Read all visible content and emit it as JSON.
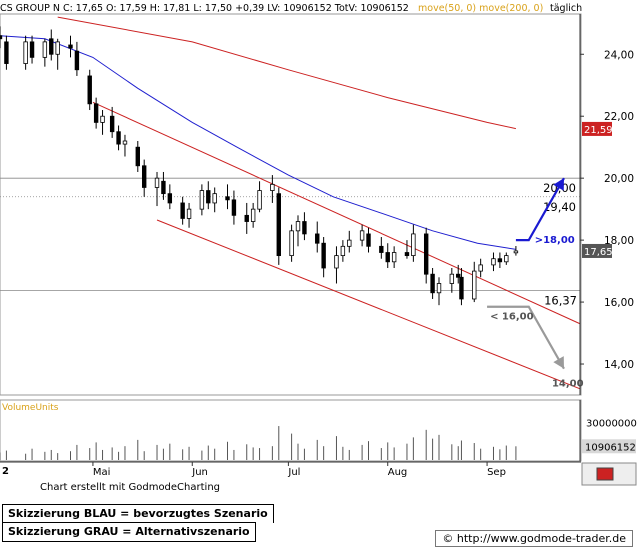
{
  "header": {
    "text": "CS GROUP N C: 17,65 O: 17,59 H: 17,81 L: 17,50 +0,39 LV: 10906152 TotV: 10906152",
    "ma_labels": "move(50, 0) move(200, 0)",
    "period": "täglich"
  },
  "colors": {
    "ma50": "#1f1fcf",
    "ma200": "#cc2222",
    "channel": "#cc2222",
    "primary_scenario": "#1a1ad1",
    "alternative_scenario": "#9a9a9a",
    "volume": "#555555"
  },
  "chart_data": [
    {
      "type": "line",
      "title": "CS GROUP N",
      "y_scale": "linear",
      "ylim": [
        13.0,
        25.3
      ],
      "y_ticks": [
        14,
        16,
        18,
        20,
        22,
        24
      ],
      "y_tick_labels": [
        "14,00",
        "16,00",
        "18,00",
        "20,00",
        "22,00",
        "24,00"
      ],
      "x_range": [
        "2007-04-02",
        "2007-09-30"
      ],
      "x_ticks": [
        {
          "date": "2007-05-01",
          "label": "Mai"
        },
        {
          "date": "2007-06-01",
          "label": "Jun"
        },
        {
          "date": "2007-07-01",
          "label": "Jul"
        },
        {
          "date": "2007-08-01",
          "label": "Aug"
        },
        {
          "date": "2007-09-01",
          "label": "Sep"
        }
      ],
      "x_leading_label": "2",
      "last_bar": {
        "open": 17.59,
        "high": 17.81,
        "low": 17.5,
        "close": 17.65
      },
      "candles": [
        {
          "x": "2007-04-02",
          "o": 24.6,
          "h": 24.9,
          "l": 24.2,
          "c": 24.5
        },
        {
          "x": "2007-04-04",
          "o": 24.4,
          "h": 24.6,
          "l": 23.5,
          "c": 23.7
        },
        {
          "x": "2007-04-10",
          "o": 23.7,
          "h": 24.6,
          "l": 23.5,
          "c": 24.4
        },
        {
          "x": "2007-04-12",
          "o": 24.4,
          "h": 24.6,
          "l": 23.7,
          "c": 23.9
        },
        {
          "x": "2007-04-16",
          "o": 23.9,
          "h": 24.5,
          "l": 23.6,
          "c": 24.4
        },
        {
          "x": "2007-04-18",
          "o": 24.5,
          "h": 24.8,
          "l": 23.8,
          "c": 24.0
        },
        {
          "x": "2007-04-20",
          "o": 24.0,
          "h": 24.5,
          "l": 23.5,
          "c": 24.4
        },
        {
          "x": "2007-04-24",
          "o": 24.3,
          "h": 24.6,
          "l": 23.9,
          "c": 24.2
        },
        {
          "x": "2007-04-26",
          "o": 24.1,
          "h": 24.4,
          "l": 23.3,
          "c": 23.5
        },
        {
          "x": "2007-04-30",
          "o": 23.3,
          "h": 23.5,
          "l": 22.2,
          "c": 22.4
        },
        {
          "x": "2007-05-02",
          "o": 22.4,
          "h": 22.6,
          "l": 21.6,
          "c": 21.8
        },
        {
          "x": "2007-05-04",
          "o": 21.8,
          "h": 22.2,
          "l": 21.4,
          "c": 22.0
        },
        {
          "x": "2007-05-07",
          "o": 22.0,
          "h": 22.3,
          "l": 21.3,
          "c": 21.5
        },
        {
          "x": "2007-05-09",
          "o": 21.5,
          "h": 21.7,
          "l": 20.9,
          "c": 21.1
        },
        {
          "x": "2007-05-11",
          "o": 21.1,
          "h": 21.4,
          "l": 20.7,
          "c": 21.2
        },
        {
          "x": "2007-05-15",
          "o": 21.0,
          "h": 21.2,
          "l": 20.2,
          "c": 20.4
        },
        {
          "x": "2007-05-17",
          "o": 20.4,
          "h": 20.6,
          "l": 19.4,
          "c": 19.7
        },
        {
          "x": "2007-05-21",
          "o": 19.7,
          "h": 20.2,
          "l": 19.1,
          "c": 20.0
        },
        {
          "x": "2007-05-23",
          "o": 19.9,
          "h": 20.2,
          "l": 19.3,
          "c": 19.5
        },
        {
          "x": "2007-05-25",
          "o": 19.5,
          "h": 19.8,
          "l": 19.0,
          "c": 19.2
        },
        {
          "x": "2007-05-29",
          "o": 19.2,
          "h": 19.4,
          "l": 18.5,
          "c": 18.7
        },
        {
          "x": "2007-05-31",
          "o": 18.7,
          "h": 19.2,
          "l": 18.4,
          "c": 19.0
        },
        {
          "x": "2007-06-04",
          "o": 19.0,
          "h": 19.8,
          "l": 18.8,
          "c": 19.6
        },
        {
          "x": "2007-06-06",
          "o": 19.6,
          "h": 19.9,
          "l": 19.0,
          "c": 19.2
        },
        {
          "x": "2007-06-08",
          "o": 19.2,
          "h": 19.7,
          "l": 18.9,
          "c": 19.5
        },
        {
          "x": "2007-06-12",
          "o": 19.4,
          "h": 19.8,
          "l": 19.0,
          "c": 19.3
        },
        {
          "x": "2007-06-14",
          "o": 19.3,
          "h": 19.6,
          "l": 18.5,
          "c": 18.8
        },
        {
          "x": "2007-06-18",
          "o": 18.8,
          "h": 19.2,
          "l": 18.2,
          "c": 18.6
        },
        {
          "x": "2007-06-20",
          "o": 18.6,
          "h": 19.2,
          "l": 18.4,
          "c": 19.0
        },
        {
          "x": "2007-06-22",
          "o": 19.0,
          "h": 19.9,
          "l": 18.9,
          "c": 19.6
        },
        {
          "x": "2007-06-26",
          "o": 19.6,
          "h": 20.1,
          "l": 19.2,
          "c": 19.8
        },
        {
          "x": "2007-06-28",
          "o": 19.5,
          "h": 19.7,
          "l": 17.2,
          "c": 17.5
        },
        {
          "x": "2007-07-02",
          "o": 17.5,
          "h": 18.5,
          "l": 17.3,
          "c": 18.3
        },
        {
          "x": "2007-07-04",
          "o": 18.3,
          "h": 18.8,
          "l": 17.8,
          "c": 18.6
        },
        {
          "x": "2007-07-06",
          "o": 18.6,
          "h": 18.9,
          "l": 18.0,
          "c": 18.2
        },
        {
          "x": "2007-07-10",
          "o": 18.2,
          "h": 18.6,
          "l": 17.6,
          "c": 17.9
        },
        {
          "x": "2007-07-12",
          "o": 17.9,
          "h": 18.1,
          "l": 16.8,
          "c": 17.1
        },
        {
          "x": "2007-07-16",
          "o": 17.1,
          "h": 17.8,
          "l": 16.6,
          "c": 17.5
        },
        {
          "x": "2007-07-18",
          "o": 17.5,
          "h": 18.0,
          "l": 17.3,
          "c": 17.8
        },
        {
          "x": "2007-07-20",
          "o": 17.8,
          "h": 18.3,
          "l": 17.6,
          "c": 18.0
        },
        {
          "x": "2007-07-24",
          "o": 18.0,
          "h": 18.5,
          "l": 17.8,
          "c": 18.3
        },
        {
          "x": "2007-07-26",
          "o": 18.2,
          "h": 18.4,
          "l": 17.6,
          "c": 17.8
        },
        {
          "x": "2007-07-30",
          "o": 17.8,
          "h": 18.1,
          "l": 17.4,
          "c": 17.6
        },
        {
          "x": "2007-08-01",
          "o": 17.6,
          "h": 17.9,
          "l": 17.1,
          "c": 17.3
        },
        {
          "x": "2007-08-03",
          "o": 17.3,
          "h": 17.8,
          "l": 17.1,
          "c": 17.6
        },
        {
          "x": "2007-08-07",
          "o": 17.6,
          "h": 18.0,
          "l": 17.4,
          "c": 17.5
        },
        {
          "x": "2007-08-09",
          "o": 17.5,
          "h": 18.5,
          "l": 17.3,
          "c": 18.2
        },
        {
          "x": "2007-08-13",
          "o": 18.2,
          "h": 18.4,
          "l": 16.6,
          "c": 16.9
        },
        {
          "x": "2007-08-15",
          "o": 16.9,
          "h": 17.1,
          "l": 16.1,
          "c": 16.3
        },
        {
          "x": "2007-08-17",
          "o": 16.3,
          "h": 16.8,
          "l": 15.9,
          "c": 16.6
        },
        {
          "x": "2007-08-21",
          "o": 16.6,
          "h": 17.1,
          "l": 16.3,
          "c": 16.9
        },
        {
          "x": "2007-08-23",
          "o": 16.9,
          "h": 17.2,
          "l": 16.6,
          "c": 16.8
        },
        {
          "x": "2007-08-24",
          "o": 16.8,
          "h": 17.1,
          "l": 15.9,
          "c": 16.1
        },
        {
          "x": "2007-08-28",
          "o": 16.1,
          "h": 17.3,
          "l": 16.0,
          "c": 17.0
        },
        {
          "x": "2007-08-30",
          "o": 17.0,
          "h": 17.4,
          "l": 16.8,
          "c": 17.2
        },
        {
          "x": "2007-09-03",
          "o": 17.2,
          "h": 17.6,
          "l": 17.0,
          "c": 17.4
        },
        {
          "x": "2007-09-05",
          "o": 17.4,
          "h": 17.6,
          "l": 17.1,
          "c": 17.3
        },
        {
          "x": "2007-09-07",
          "o": 17.3,
          "h": 17.6,
          "l": 17.2,
          "c": 17.5
        },
        {
          "x": "2007-09-10",
          "o": 17.59,
          "h": 17.81,
          "l": 17.5,
          "c": 17.65
        }
      ],
      "moving_average_50": [
        {
          "x": "2007-04-02",
          "y": 24.6
        },
        {
          "x": "2007-04-16",
          "y": 24.5
        },
        {
          "x": "2007-05-01",
          "y": 23.9
        },
        {
          "x": "2007-05-15",
          "y": 22.9
        },
        {
          "x": "2007-06-01",
          "y": 21.8
        },
        {
          "x": "2007-06-15",
          "y": 21.0
        },
        {
          "x": "2007-07-01",
          "y": 20.1
        },
        {
          "x": "2007-07-15",
          "y": 19.4
        },
        {
          "x": "2007-08-01",
          "y": 18.8
        },
        {
          "x": "2007-08-15",
          "y": 18.3
        },
        {
          "x": "2007-08-29",
          "y": 17.9
        },
        {
          "x": "2007-09-10",
          "y": 17.7
        }
      ],
      "moving_average_200": [
        {
          "x": "2007-04-20",
          "y": 25.2
        },
        {
          "x": "2007-06-01",
          "y": 24.4
        },
        {
          "x": "2007-07-01",
          "y": 23.5
        },
        {
          "x": "2007-08-01",
          "y": 22.6
        },
        {
          "x": "2007-09-01",
          "y": 21.8
        },
        {
          "x": "2007-09-10",
          "y": 21.6
        }
      ],
      "channel_lines": [
        {
          "name": "upper",
          "from": {
            "x": "2007-05-01",
            "y": 22.45
          },
          "to": {
            "x": "2007-09-30",
            "y": 15.3
          }
        },
        {
          "name": "lower",
          "from": {
            "x": "2007-05-21",
            "y": 18.65
          },
          "to": {
            "x": "2007-09-30",
            "y": 13.2
          }
        }
      ],
      "horizontal_levels": [
        {
          "y": 20.0,
          "label": "20,00"
        },
        {
          "y": 19.4,
          "label": "19,40",
          "dashed": true
        },
        {
          "y": 16.37,
          "label": "16,37"
        }
      ],
      "axis_markers": [
        {
          "y": 21.59,
          "label": "21,59",
          "color": "#cc2222"
        },
        {
          "y": 17.65,
          "label": "17,65",
          "color": "#555555"
        }
      ],
      "scenarios": [
        {
          "name": "primary",
          "label": ">18,00",
          "path": [
            {
              "x": "2007-09-10",
              "y": 18.0
            },
            {
              "x": "2007-09-14",
              "y": 18.0
            },
            {
              "x": "2007-09-25",
              "y": 20.0
            }
          ]
        },
        {
          "name": "alternative",
          "labels": [
            "< 16,00",
            "14,00"
          ],
          "path": [
            {
              "x": "2007-09-01",
              "y": 15.85
            },
            {
              "x": "2007-09-14",
              "y": 15.85
            },
            {
              "x": "2007-09-25",
              "y": 13.85
            }
          ]
        }
      ]
    },
    {
      "type": "bar",
      "title": "VolumeUnits",
      "ylim": [
        0,
        35000000
      ],
      "y_tick_labels": [
        "30000000",
        "10906152"
      ],
      "bars": [
        {
          "x": "2007-04-02",
          "v": 6000000
        },
        {
          "x": "2007-04-04",
          "v": 7500000
        },
        {
          "x": "2007-04-10",
          "v": 5000000
        },
        {
          "x": "2007-04-12",
          "v": 9000000
        },
        {
          "x": "2007-04-16",
          "v": 6500000
        },
        {
          "x": "2007-04-18",
          "v": 8000000
        },
        {
          "x": "2007-04-20",
          "v": 5500000
        },
        {
          "x": "2007-04-24",
          "v": 7000000
        },
        {
          "x": "2007-04-26",
          "v": 12000000
        },
        {
          "x": "2007-04-30",
          "v": 9500000
        },
        {
          "x": "2007-05-02",
          "v": 14000000
        },
        {
          "x": "2007-05-04",
          "v": 8000000
        },
        {
          "x": "2007-05-07",
          "v": 10000000
        },
        {
          "x": "2007-05-09",
          "v": 6500000
        },
        {
          "x": "2007-05-11",
          "v": 11000000
        },
        {
          "x": "2007-05-15",
          "v": 16000000
        },
        {
          "x": "2007-05-17",
          "v": 7000000
        },
        {
          "x": "2007-05-21",
          "v": 12000000
        },
        {
          "x": "2007-05-23",
          "v": 9000000
        },
        {
          "x": "2007-05-25",
          "v": 13000000
        },
        {
          "x": "2007-05-29",
          "v": 8500000
        },
        {
          "x": "2007-05-31",
          "v": 10500000
        },
        {
          "x": "2007-06-04",
          "v": 7500000
        },
        {
          "x": "2007-06-06",
          "v": 11500000
        },
        {
          "x": "2007-06-08",
          "v": 9000000
        },
        {
          "x": "2007-06-12",
          "v": 14500000
        },
        {
          "x": "2007-06-14",
          "v": 8000000
        },
        {
          "x": "2007-06-18",
          "v": 12500000
        },
        {
          "x": "2007-06-20",
          "v": 10000000
        },
        {
          "x": "2007-06-22",
          "v": 9500000
        },
        {
          "x": "2007-06-26",
          "v": 11000000
        },
        {
          "x": "2007-06-28",
          "v": 27000000
        },
        {
          "x": "2007-07-02",
          "v": 21000000
        },
        {
          "x": "2007-07-04",
          "v": 13000000
        },
        {
          "x": "2007-07-06",
          "v": 9000000
        },
        {
          "x": "2007-07-10",
          "v": 16000000
        },
        {
          "x": "2007-07-12",
          "v": 11000000
        },
        {
          "x": "2007-07-16",
          "v": 19000000
        },
        {
          "x": "2007-07-18",
          "v": 10500000
        },
        {
          "x": "2007-07-20",
          "v": 8000000
        },
        {
          "x": "2007-07-24",
          "v": 12000000
        },
        {
          "x": "2007-07-26",
          "v": 15000000
        },
        {
          "x": "2007-07-30",
          "v": 9500000
        },
        {
          "x": "2007-08-01",
          "v": 14000000
        },
        {
          "x": "2007-08-03",
          "v": 10000000
        },
        {
          "x": "2007-08-07",
          "v": 13000000
        },
        {
          "x": "2007-08-09",
          "v": 18000000
        },
        {
          "x": "2007-08-13",
          "v": 24000000
        },
        {
          "x": "2007-08-15",
          "v": 17000000
        },
        {
          "x": "2007-08-17",
          "v": 20000000
        },
        {
          "x": "2007-08-21",
          "v": 12500000
        },
        {
          "x": "2007-08-23",
          "v": 11000000
        },
        {
          "x": "2007-08-24",
          "v": 15500000
        },
        {
          "x": "2007-08-28",
          "v": 13500000
        },
        {
          "x": "2007-08-30",
          "v": 9000000
        },
        {
          "x": "2007-09-03",
          "v": 10500000
        },
        {
          "x": "2007-09-05",
          "v": 8500000
        },
        {
          "x": "2007-09-07",
          "v": 11500000
        },
        {
          "x": "2007-09-10",
          "v": 10906152
        }
      ]
    }
  ],
  "footer": {
    "credit": "Chart erstellt mit GodmodeCharting",
    "legend_blue": "Skizzierung BLAU = bevorzugtes Szenario",
    "legend_gray": "Skizzierung GRAU = Alternativszenario",
    "url": "http://www.godmode-trader.de"
  }
}
